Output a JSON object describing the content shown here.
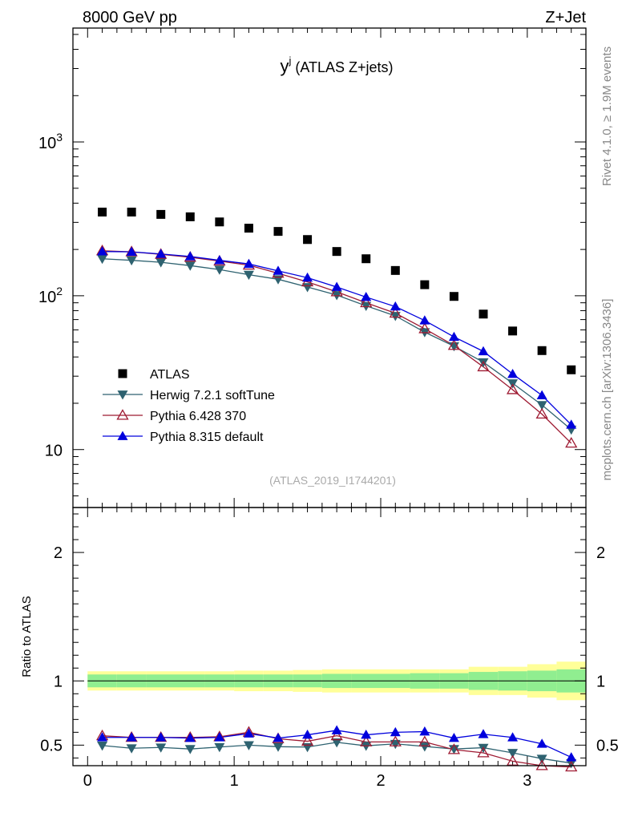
{
  "header": {
    "left": "8000 GeV pp",
    "right": "Z+Jet",
    "side_top": "Rivet 4.1.0, ≥ 1.9M events",
    "side_bottom": "mcplots.cern.ch [arXiv:1306.3436]"
  },
  "chart_data": {
    "type": "scatter",
    "title_main": "y",
    "title_sup": "j",
    "title_rest": " (ATLAS Z+jets)",
    "analysis_label": "(ATLAS_2019_I1744201)",
    "x": [
      0.1,
      0.3,
      0.5,
      0.7,
      0.9,
      1.1,
      1.3,
      1.5,
      1.7,
      1.9,
      2.1,
      2.3,
      2.5,
      2.7,
      2.9,
      3.1,
      3.3
    ],
    "xlim": [
      -0.1,
      3.4
    ],
    "xticks": [
      0,
      1,
      2,
      3
    ],
    "main_ylim": [
      4.2,
      5500
    ],
    "main_yticks": [
      {
        "v": 1000,
        "base": "10",
        "exp": "3"
      },
      {
        "v": 100,
        "base": "10",
        "exp": "2"
      },
      {
        "v": 10,
        "base": "10",
        "exp": ""
      }
    ],
    "ratio_ylim": [
      0.34,
      2.35
    ],
    "ratio_yticks": [
      "0.5",
      "1",
      "2"
    ],
    "ratio_ylabel": "Ratio to ATLAS",
    "data_series": {
      "name": "ATLAS",
      "color": "#000000",
      "marker": "square",
      "values": [
        350,
        350,
        338,
        326,
        302,
        275,
        262,
        232,
        194,
        174,
        146,
        118,
        99,
        76,
        59,
        44,
        33
      ]
    },
    "mc_series": [
      {
        "name": "Herwig 7.2.1 softTune",
        "color": "#2e6270",
        "marker": "triangle-down",
        "values": [
          174,
          170,
          165,
          157,
          148,
          137,
          128,
          114,
          101,
          86,
          74,
          58,
          47,
          37,
          27,
          19.5,
          13.5
        ],
        "ratio": [
          0.497,
          0.476,
          0.482,
          0.47,
          0.485,
          0.5,
          0.488,
          0.485,
          0.522,
          0.495,
          0.51,
          0.49,
          0.47,
          0.48,
          0.44,
          0.395,
          0.36
        ]
      },
      {
        "name": "Pythia 6.428 370",
        "color": "#9e1a32",
        "marker": "triangle-open",
        "values": [
          196,
          193,
          186,
          178,
          168,
          158,
          140,
          123,
          106,
          90,
          77,
          61,
          47.5,
          34.5,
          24.5,
          17,
          11
        ],
        "ratio": [
          0.573,
          0.56,
          0.56,
          0.56,
          0.565,
          0.6,
          0.55,
          0.53,
          0.573,
          0.525,
          0.525,
          0.525,
          0.465,
          0.44,
          0.375,
          0.34,
          0.33
        ]
      },
      {
        "name": "Pythia 8.315 default",
        "color": "#0000dd",
        "marker": "triangle-up",
        "values": [
          194,
          193,
          187,
          180,
          170,
          161,
          145,
          131,
          114,
          98,
          85,
          69,
          54,
          43.5,
          31,
          22.5,
          14.5
        ],
        "ratio": [
          0.56,
          0.56,
          0.56,
          0.555,
          0.56,
          0.59,
          0.555,
          0.58,
          0.615,
          0.58,
          0.6,
          0.605,
          0.555,
          0.585,
          0.56,
          0.51,
          0.405
        ]
      }
    ],
    "uncertainty_band": {
      "inner_color": "#90ee90",
      "outer_color": "#ffff99",
      "x_edges": [
        0.0,
        0.2,
        0.4,
        0.6,
        0.8,
        1.0,
        1.2,
        1.4,
        1.6,
        1.8,
        2.0,
        2.2,
        2.4,
        2.6,
        2.8,
        3.0,
        3.2,
        3.4
      ],
      "inner_half": [
        0.05,
        0.05,
        0.05,
        0.05,
        0.05,
        0.05,
        0.05,
        0.05,
        0.055,
        0.055,
        0.055,
        0.06,
        0.06,
        0.07,
        0.075,
        0.08,
        0.09
      ],
      "outer_half": [
        0.075,
        0.075,
        0.075,
        0.075,
        0.075,
        0.08,
        0.08,
        0.085,
        0.09,
        0.09,
        0.09,
        0.09,
        0.09,
        0.11,
        0.11,
        0.13,
        0.15
      ]
    }
  }
}
